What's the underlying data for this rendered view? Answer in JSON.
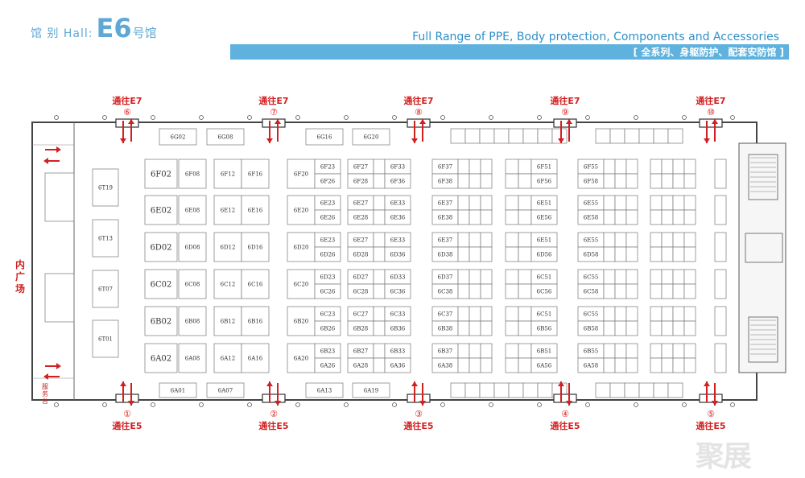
{
  "header": {
    "hall_label": "馆 别 Hall:",
    "hall_code": "E6",
    "hall_suffix": "号馆",
    "title": "Full Range of PPE, Body protection, Components and Accessories",
    "subtitle": "[ 全系列、身躯防护、配套安防馆 ]"
  },
  "side_label": "内广场",
  "service_desk": "服务台",
  "watermark": "聚展",
  "colors": {
    "accent": "#5eb2dd",
    "arrow": "#d31f1f",
    "wall": "#444444"
  },
  "gates_top": [
    {
      "label": "通往E7",
      "num": "⑥"
    },
    {
      "label": "通往E7",
      "num": "⑦"
    },
    {
      "label": "通往E7",
      "num": "⑧"
    },
    {
      "label": "通往E7",
      "num": "⑨"
    },
    {
      "label": "通往E7",
      "num": "⑩"
    }
  ],
  "gates_bottom": [
    {
      "label": "通往E5",
      "num": "①"
    },
    {
      "label": "通往E5",
      "num": "②"
    },
    {
      "label": "通往E5",
      "num": "③"
    },
    {
      "label": "通往E5",
      "num": "④"
    },
    {
      "label": "通往E5",
      "num": "⑤"
    }
  ],
  "top_booths": [
    "6G02",
    "6G08",
    "6G16",
    "6G20"
  ],
  "bottom_booths": [
    "6A01",
    "6A07",
    "6A13",
    "6A19"
  ],
  "left_booths": [
    "6T19",
    "6T13",
    "6T07",
    "6T01"
  ],
  "rows": [
    {
      "col1": "6F02",
      "c2": "6F08",
      "c3": "6F12",
      "c4": "6F16",
      "c5": "6F20",
      "d1": "6F23",
      "d2": "6F26",
      "e1": "6F27",
      "e2": "6F28",
      "e3": "6F33",
      "e4": "6F36",
      "f1": "6F37",
      "f2": "6F38",
      "g1": "6F51",
      "g2": "6F56",
      "h1": "6F55",
      "h2": "6F58"
    },
    {
      "col1": "6E02",
      "c2": "6E08",
      "c3": "6E12",
      "c4": "6E16",
      "c5": "6E20",
      "d1": "6E23",
      "d2": "6E26",
      "e1": "6E27",
      "e2": "6E28",
      "e3": "6E33",
      "e4": "6E36",
      "f1": "6E37",
      "f2": "6E38",
      "g1": "6E51",
      "g2": "6E56",
      "h1": "6E55",
      "h2": "6E58"
    },
    {
      "col1": "6D02",
      "c2": "6D08",
      "c3": "6D12",
      "c4": "6D16",
      "c5": "6D20",
      "d1": "6E23",
      "d2": "6D26",
      "e1": "6E27",
      "e2": "6D28",
      "e3": "6E33",
      "e4": "6D36",
      "f1": "6E37",
      "f2": "6D38",
      "g1": "6E51",
      "g2": "6D56",
      "h1": "6E55",
      "h2": "6D58"
    },
    {
      "col1": "6C02",
      "c2": "6C08",
      "c3": "6C12",
      "c4": "6C16",
      "c5": "6C20",
      "d1": "6D23",
      "d2": "6C26",
      "e1": "6D27",
      "e2": "6C28",
      "e3": "6D33",
      "e4": "6C36",
      "f1": "6D37",
      "f2": "6C38",
      "g1": "6C51",
      "g2": "6C56",
      "h1": "6C55",
      "h2": "6C58"
    },
    {
      "col1": "6B02",
      "c2": "6B08",
      "c3": "6B12",
      "c4": "6B16",
      "c5": "6B20",
      "d1": "6C23",
      "d2": "6B26",
      "e1": "6C27",
      "e2": "6B28",
      "e3": "6C33",
      "e4": "6B36",
      "f1": "6C37",
      "f2": "6B38",
      "g1": "6C51",
      "g2": "6B56",
      "h1": "6C55",
      "h2": "6B58"
    },
    {
      "col1": "6A02",
      "c2": "6A08",
      "c3": "6A12",
      "c4": "6A16",
      "c5": "6A20",
      "d1": "6B23",
      "d2": "6A26",
      "e1": "6B27",
      "e2": "6A28",
      "e3": "6B33",
      "e4": "6A36",
      "f1": "6B37",
      "f2": "6A38",
      "g1": "6B51",
      "g2": "6A56",
      "h1": "6B55",
      "h2": "6A58"
    }
  ]
}
